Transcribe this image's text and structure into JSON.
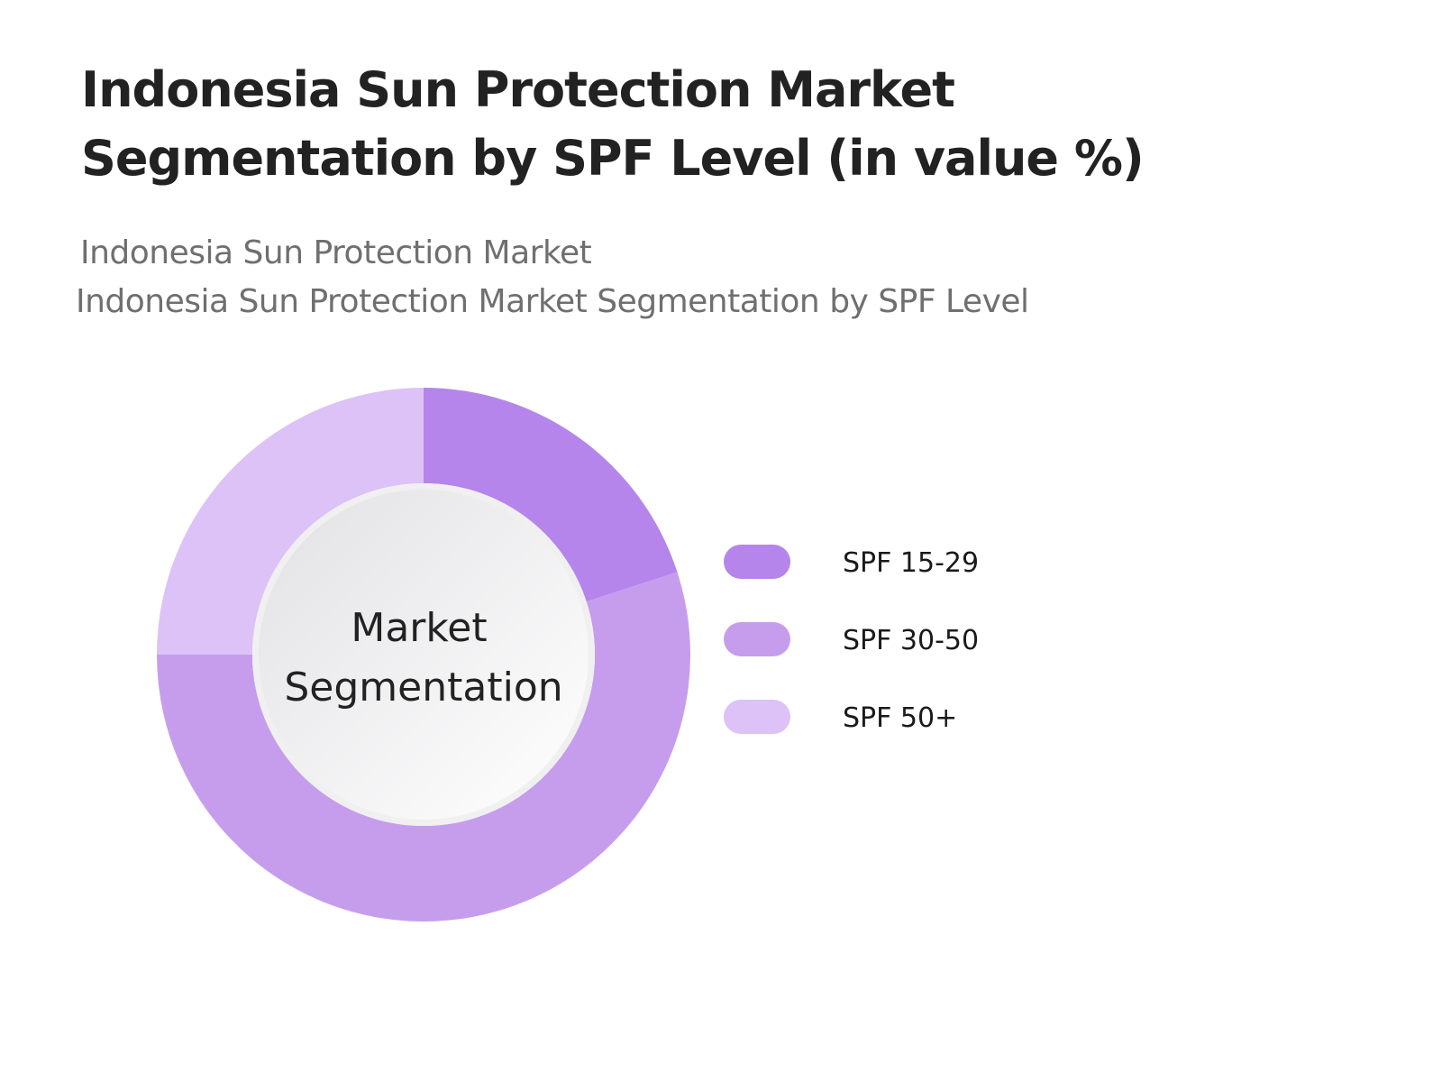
{
  "title": "Indonesia Sun Protection Market Segmentation by SPF Level (in value %)",
  "subtitle_line1": "Indonesia Sun Protection Market",
  "subtitle_line2": "Indonesia Sun Protection Market Segmentation by SPF Level",
  "chart_data": {
    "type": "pie",
    "style": "donut",
    "center_label": [
      "Market",
      "Segmentation"
    ],
    "categories": [
      "SPF 15-29",
      "SPF 30-50",
      "SPF 50+"
    ],
    "values": [
      20,
      55,
      25
    ],
    "unit": "%",
    "colors": [
      "#b585eb",
      "#c69ded",
      "#dcc2f6"
    ],
    "legend_position": "right",
    "start": "top, clockwise"
  }
}
